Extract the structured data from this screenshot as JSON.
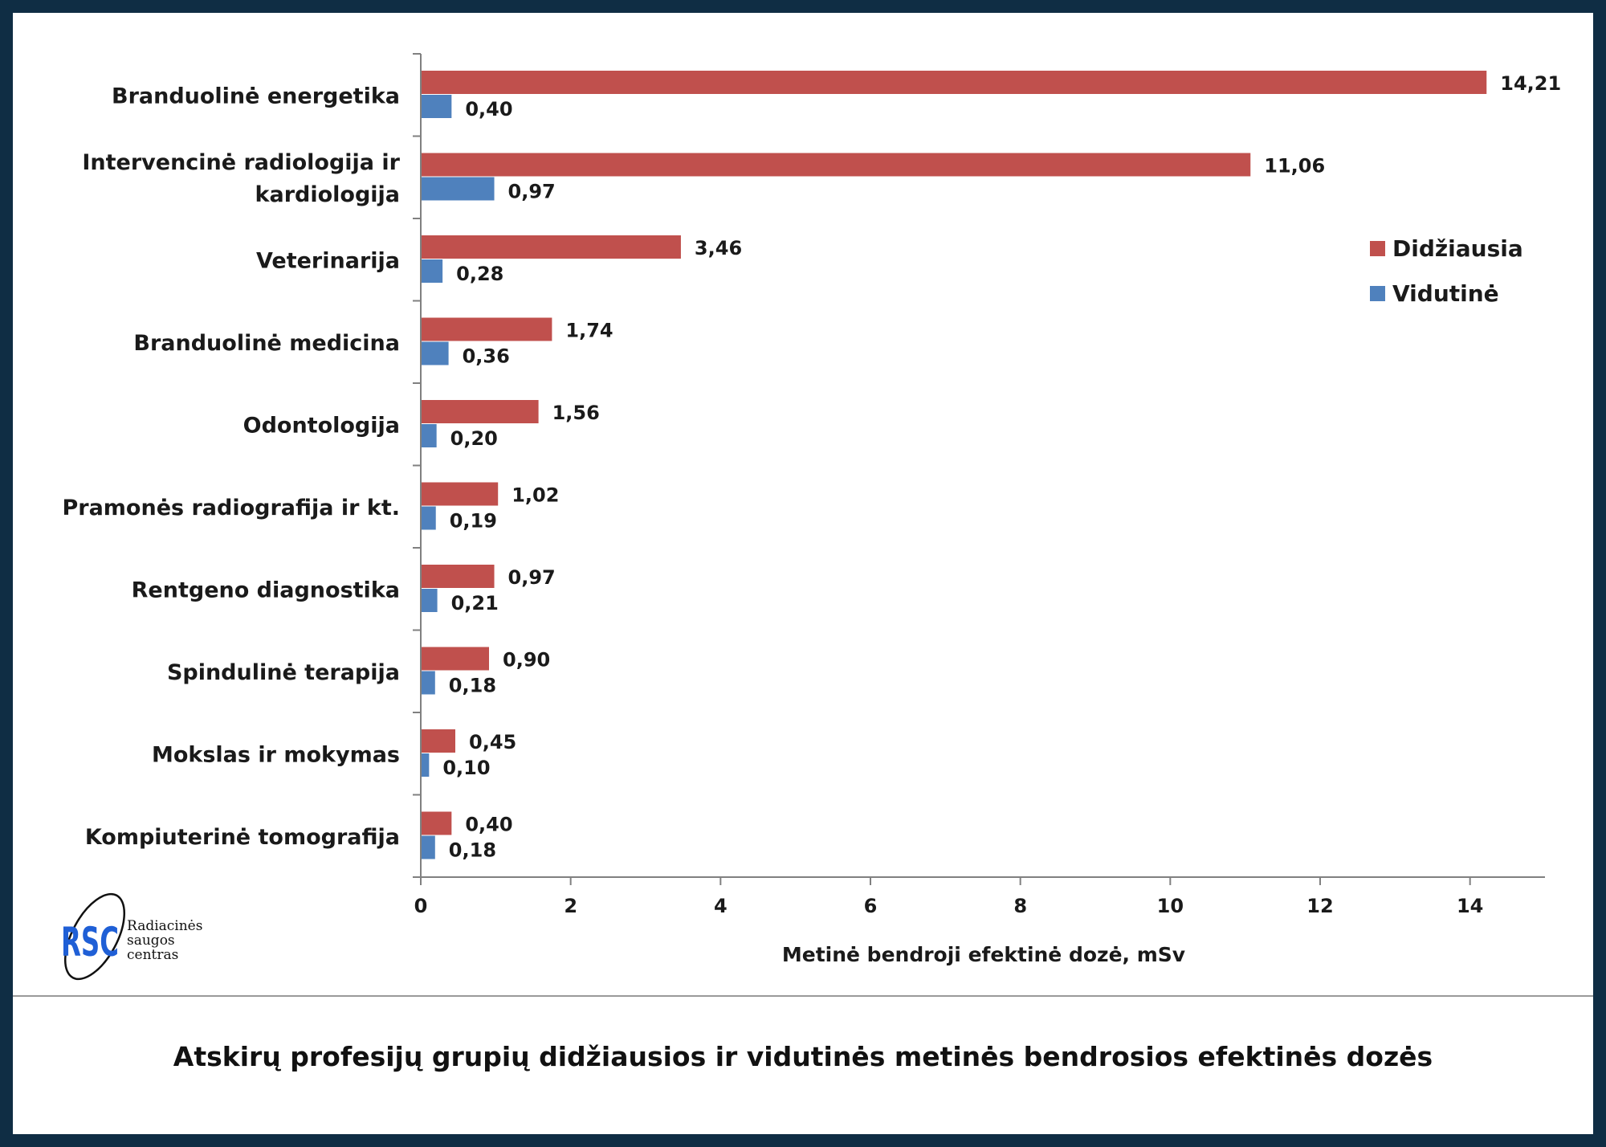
{
  "caption": "Atskirų profesijų grupių didžiausios ir vidutinės metinės bendrosios efektinės dozės",
  "logo": {
    "mark": "RSC",
    "line1": "Radiacinės",
    "line2": "saugos",
    "line3": "centras"
  },
  "chart_data": {
    "type": "bar",
    "orientation": "horizontal",
    "categories": [
      [
        "Branduolinė energetika"
      ],
      [
        "Intervencinė radiologija ir",
        "kardiologija"
      ],
      [
        "Veterinarija"
      ],
      [
        "Branduolinė medicina"
      ],
      [
        "Odontologija"
      ],
      [
        "Pramonės radiografija ir kt."
      ],
      [
        "Rentgeno diagnostika"
      ],
      [
        "Spindulinė terapija"
      ],
      [
        "Mokslas ir mokymas"
      ],
      [
        "Kompiuterinė tomografija"
      ]
    ],
    "series": [
      {
        "name": "Didžiausia",
        "color": "#c0504d",
        "values": [
          14.21,
          11.06,
          3.46,
          1.74,
          1.56,
          1.02,
          0.97,
          0.9,
          0.45,
          0.4
        ],
        "labels": [
          "14,21",
          "11,06",
          "3,46",
          "1,74",
          "1,56",
          "1,02",
          "0,97",
          "0,90",
          "0,45",
          "0,40"
        ]
      },
      {
        "name": "Vidutinė",
        "color": "#4f81bd",
        "values": [
          0.4,
          0.97,
          0.28,
          0.36,
          0.2,
          0.19,
          0.21,
          0.18,
          0.1,
          0.18
        ],
        "labels": [
          "0,40",
          "0,97",
          "0,28",
          "0,36",
          "0,20",
          "0,19",
          "0,21",
          "0,18",
          "0,10",
          "0,18"
        ]
      }
    ],
    "xlabel": "Metinė bendroji efektinė dozė, mSv",
    "xlim": [
      0,
      15
    ],
    "xticks": [
      0,
      2,
      4,
      6,
      8,
      10,
      12,
      14
    ],
    "grid": false,
    "legend_position": "right"
  }
}
